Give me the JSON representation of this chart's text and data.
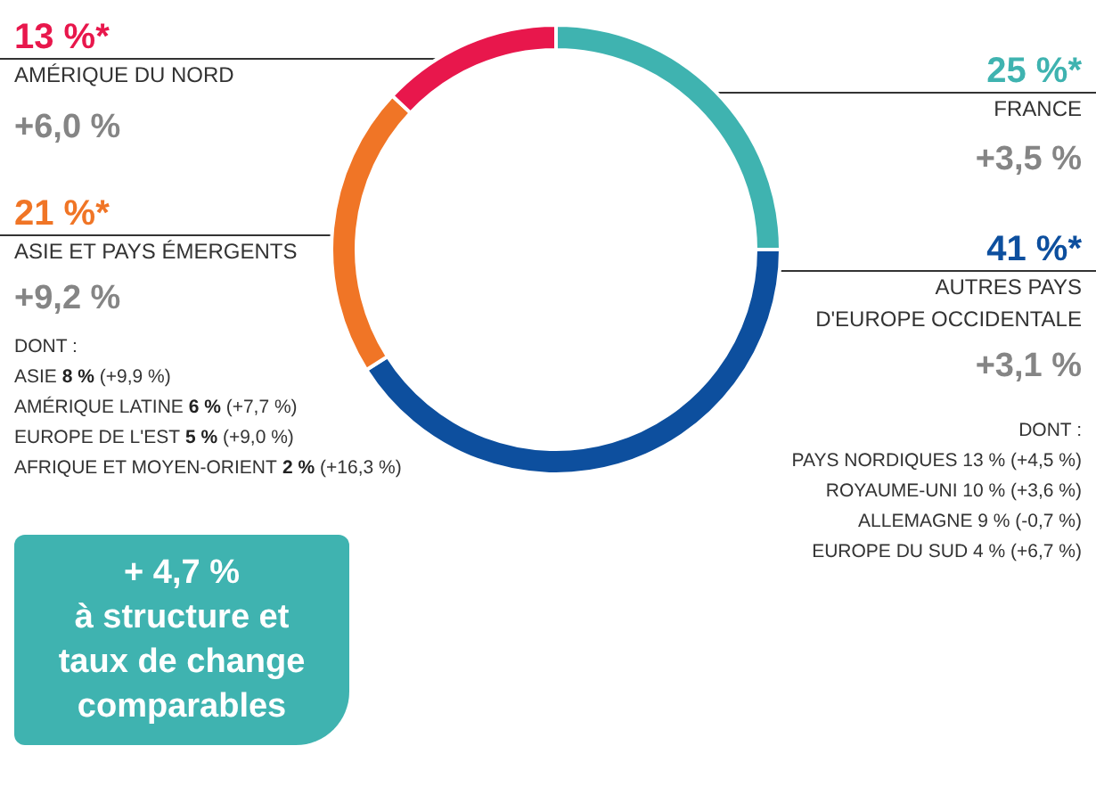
{
  "chart_data": {
    "type": "donut",
    "categories": [
      "FRANCE",
      "AUTRES PAYS\nD'EUROPE OCCIDENTALE",
      "ASIE ET PAYS ÉMERGENTS",
      "AMÉRIQUE DU NORD"
    ],
    "values": [
      25,
      41,
      21,
      13
    ],
    "colors": [
      "#3fb3b0",
      "#0d4f9e",
      "#f07526",
      "#e8174c"
    ],
    "value_labels": [
      "25 %*",
      "41 %*",
      "21 %*",
      "13 %*"
    ],
    "legend": false,
    "annotations": [
      "+3,5 %",
      "+3,1 %",
      "+9,2 %",
      "+6,0 %",
      "DONT :\nPAYS NORDIQUES 13 % (+4,5 %)\nROYAUME-UNI 10 % (+3,6 %)\nALLEMAGNE 9 % (-0,7 %)\nEUROPE DU SUD 4 % (+6,7 %)",
      "DONT :\nASIE 8 % (+9,9 %)\nAMÉRIQUE LATINE 6 % (+7,7 %)\nEUROPE DE L'EST 5 % (+9,0 %)\nAFRIQUE ET MOYEN-ORIENT 2 % (+16,3 %)",
      "+ 4,7 %\nà structure et\ntaux de change\ncomparables"
    ]
  }
}
